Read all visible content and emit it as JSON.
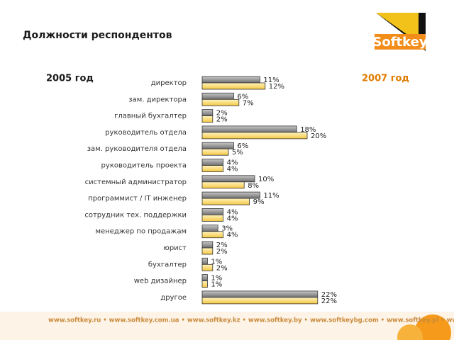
{
  "chart_data": {
    "type": "bar",
    "orientation": "horizontal",
    "title": "Должности респондентов",
    "logo": "Softkey",
    "footer": "www.softkey.ru • www.softkey.com.ua • www.softkey.kz • www.softkey.by • www.softkeybg.com • www.softkey.pl • www.softkey.ee",
    "categories": [
      "директор",
      "зам. директора",
      "главный бухгалтер",
      "руководитель отдела",
      "зам. руководителя отдела",
      "руководитель проекта",
      "системный администратор",
      "программист / IT инженер",
      "сотрудник тех. поддержки",
      "менеджер по продажам",
      "юрист",
      "бухгалтер",
      "web дизайнер",
      "другое"
    ],
    "series": [
      {
        "name": "2005 год",
        "color": "#8c8c8c",
        "values": [
          11,
          6,
          2,
          18,
          6,
          4,
          10,
          11,
          4,
          3,
          2,
          1,
          1,
          22
        ],
        "value_labels": [
          "11%",
          "6%",
          "2%",
          "18%",
          "6%",
          "4%",
          "10%",
          "11%",
          "4%",
          "3%",
          "2%",
          "1%",
          "1%",
          "22%"
        ]
      },
      {
        "name": "2007 год",
        "color": "#ffd966",
        "values": [
          12,
          7,
          2,
          20,
          5,
          4,
          8,
          9,
          4,
          4,
          2,
          2,
          1,
          22
        ],
        "value_labels": [
          "12%",
          "7%",
          "2%",
          "20%",
          "5%",
          "4%",
          "8%",
          "9%",
          "4%",
          "4%",
          "2%",
          "2%",
          "1%",
          "22%"
        ]
      }
    ]
  }
}
